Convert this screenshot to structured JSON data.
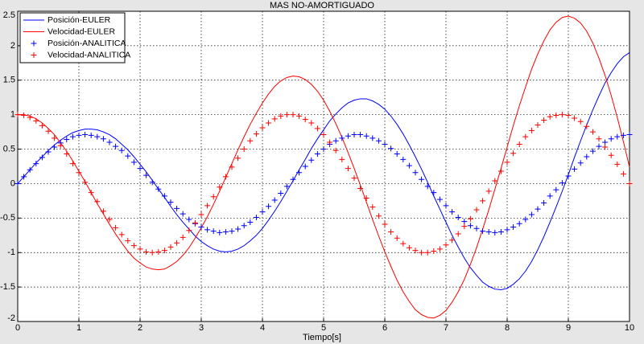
{
  "chart_data": {
    "type": "line",
    "title": "MAS NO-AMORTIGUADO",
    "x_label": "Tiempo[s]",
    "x": [
      0,
      0.1,
      0.2,
      0.3,
      0.4,
      0.5,
      0.6,
      0.7,
      0.8,
      0.9,
      1,
      1.1,
      1.2,
      1.3,
      1.4,
      1.5,
      1.6,
      1.7,
      1.8,
      1.9,
      2,
      2.1,
      2.2,
      2.3,
      2.4,
      2.5,
      2.6,
      2.7,
      2.8,
      2.9,
      3,
      3.1,
      3.2,
      3.3,
      3.4,
      3.5,
      3.6,
      3.7,
      3.8,
      3.9,
      4,
      4.1,
      4.2,
      4.3,
      4.4,
      4.5,
      4.6,
      4.7,
      4.8,
      4.9,
      5,
      5.1,
      5.2,
      5.3,
      5.4,
      5.5,
      5.6,
      5.7,
      5.8,
      5.9,
      6,
      6.1,
      6.2,
      6.3,
      6.4,
      6.5,
      6.6,
      6.7,
      6.8,
      6.9,
      7,
      7.1,
      7.2,
      7.3,
      7.4,
      7.5,
      7.6,
      7.7,
      7.8,
      7.9,
      8,
      8.1,
      8.2,
      8.3,
      8.4,
      8.5,
      8.6,
      8.7,
      8.8,
      8.9,
      9,
      9.1,
      9.2,
      9.3,
      9.4,
      9.5,
      9.6,
      9.7,
      9.8,
      9.9,
      10
    ],
    "series": [
      {
        "name": "Posición-EULER",
        "color": "#0000ff",
        "style": "line",
        "values": [
          0,
          0.1,
          0.2,
          0.3,
          0.39,
          0.48,
          0.56,
          0.63,
          0.69,
          0.74,
          0.77,
          0.79,
          0.79,
          0.78,
          0.75,
          0.71,
          0.65,
          0.57,
          0.49,
          0.39,
          0.28,
          0.17,
          0.05,
          -0.08,
          -0.2,
          -0.33,
          -0.45,
          -0.56,
          -0.66,
          -0.76,
          -0.84,
          -0.9,
          -0.95,
          -0.98,
          -0.99,
          -0.98,
          -0.95,
          -0.9,
          -0.83,
          -0.75,
          -0.65,
          -0.53,
          -0.4,
          -0.26,
          -0.11,
          0.04,
          0.2,
          0.35,
          0.51,
          0.65,
          0.78,
          0.91,
          1.01,
          1.1,
          1.17,
          1.21,
          1.23,
          1.23,
          1.2,
          1.15,
          1.08,
          0.98,
          0.86,
          0.72,
          0.56,
          0.39,
          0.21,
          0.02,
          -0.18,
          -0.37,
          -0.56,
          -0.75,
          -0.92,
          -1.08,
          -1.22,
          -1.33,
          -1.43,
          -1.49,
          -1.53,
          -1.54,
          -1.52,
          -1.46,
          -1.38,
          -1.27,
          -1.13,
          -0.96,
          -0.77,
          -0.56,
          -0.34,
          -0.11,
          0.13,
          0.38,
          0.62,
          0.85,
          1.07,
          1.27,
          1.46,
          1.61,
          1.74,
          1.84,
          1.9
        ]
      },
      {
        "name": "Velocidad-EULER",
        "color": "#ff0000",
        "style": "line",
        "values": [
          1,
          1.0,
          0.98,
          0.94,
          0.88,
          0.8,
          0.71,
          0.59,
          0.47,
          0.33,
          0.18,
          0.03,
          -0.13,
          -0.29,
          -0.44,
          -0.59,
          -0.73,
          -0.86,
          -0.98,
          -1.08,
          -1.15,
          -1.21,
          -1.24,
          -1.25,
          -1.24,
          -1.19,
          -1.13,
          -1.04,
          -0.93,
          -0.79,
          -0.64,
          -0.48,
          -0.3,
          -0.11,
          0.09,
          0.29,
          0.49,
          0.68,
          0.86,
          1.02,
          1.17,
          1.3,
          1.41,
          1.49,
          1.54,
          1.56,
          1.55,
          1.51,
          1.44,
          1.34,
          1.21,
          1.05,
          0.87,
          0.67,
          0.45,
          0.22,
          -0.02,
          -0.27,
          -0.52,
          -0.76,
          -0.99,
          -1.2,
          -1.4,
          -1.57,
          -1.71,
          -1.83,
          -1.9,
          -1.94,
          -1.95,
          -1.91,
          -1.84,
          -1.72,
          -1.57,
          -1.39,
          -1.17,
          -0.93,
          -0.66,
          -0.38,
          -0.08,
          0.22,
          0.53,
          0.84,
          1.13,
          1.4,
          1.66,
          1.88,
          2.07,
          2.23,
          2.34,
          2.41,
          2.43,
          2.4,
          2.33,
          2.21,
          2.04,
          1.82,
          1.57,
          1.28,
          0.96,
          0.61,
          0.24
        ]
      },
      {
        "name": "Posición-ANALITICA",
        "color": "#0000ff",
        "style": "plus",
        "values": [
          0,
          0.1,
          0.2,
          0.29,
          0.38,
          0.46,
          0.53,
          0.59,
          0.64,
          0.68,
          0.7,
          0.71,
          0.7,
          0.68,
          0.65,
          0.6,
          0.54,
          0.48,
          0.4,
          0.31,
          0.22,
          0.12,
          0.02,
          -0.08,
          -0.18,
          -0.27,
          -0.36,
          -0.44,
          -0.52,
          -0.58,
          -0.63,
          -0.67,
          -0.69,
          -0.71,
          -0.7,
          -0.69,
          -0.66,
          -0.61,
          -0.56,
          -0.49,
          -0.41,
          -0.33,
          -0.24,
          -0.14,
          -0.04,
          0.06,
          0.16,
          0.25,
          0.34,
          0.43,
          0.5,
          0.57,
          0.62,
          0.66,
          0.69,
          0.71,
          0.71,
          0.69,
          0.66,
          0.62,
          0.57,
          0.51,
          0.43,
          0.35,
          0.26,
          0.16,
          0.06,
          -0.04,
          -0.13,
          -0.23,
          -0.32,
          -0.41,
          -0.49,
          -0.55,
          -0.61,
          -0.65,
          -0.69,
          -0.7,
          -0.71,
          -0.7,
          -0.67,
          -0.63,
          -0.58,
          -0.52,
          -0.45,
          -0.37,
          -0.28,
          -0.18,
          -0.09,
          0.01,
          0.11,
          0.21,
          0.3,
          0.39,
          0.47,
          0.54,
          0.6,
          0.65,
          0.68,
          0.7,
          0.71
        ]
      },
      {
        "name": "Velocidad-ANALITICA",
        "color": "#ff0000",
        "style": "plus",
        "values": [
          1,
          0.99,
          0.96,
          0.91,
          0.84,
          0.76,
          0.66,
          0.55,
          0.43,
          0.29,
          0.16,
          0.02,
          -0.13,
          -0.26,
          -0.4,
          -0.52,
          -0.64,
          -0.74,
          -0.83,
          -0.9,
          -0.95,
          -0.99,
          -1.0,
          -0.99,
          -0.97,
          -0.92,
          -0.86,
          -0.78,
          -0.68,
          -0.57,
          -0.45,
          -0.32,
          -0.19,
          -0.05,
          0.1,
          0.24,
          0.37,
          0.5,
          0.62,
          0.72,
          0.81,
          0.88,
          0.94,
          0.98,
          1.0,
          1.0,
          0.98,
          0.93,
          0.88,
          0.8,
          0.71,
          0.6,
          0.48,
          0.35,
          0.22,
          0.08,
          -0.07,
          -0.21,
          -0.34,
          -0.47,
          -0.59,
          -0.7,
          -0.79,
          -0.87,
          -0.93,
          -0.97,
          -1.0,
          -1.0,
          -0.98,
          -0.95,
          -0.89,
          -0.82,
          -0.73,
          -0.62,
          -0.51,
          -0.38,
          -0.25,
          -0.11,
          0.04,
          0.18,
          0.31,
          0.44,
          0.57,
          0.68,
          0.77,
          0.85,
          0.92,
          0.97,
          0.99,
          1.0,
          0.99,
          0.95,
          0.9,
          0.83,
          0.75,
          0.65,
          0.53,
          0.41,
          0.28,
          0.14,
          0
        ]
      }
    ],
    "xlim": [
      0,
      10
    ],
    "xticks": [
      0,
      1,
      2,
      3,
      4,
      5,
      6,
      7,
      8,
      9,
      10
    ],
    "ylim": [
      -2,
      2.5
    ],
    "yticks": [
      -2,
      -1.5,
      -1,
      -0.5,
      0,
      0.5,
      1,
      1.5,
      2,
      2.5
    ],
    "grid": true,
    "legend": "upper left"
  }
}
